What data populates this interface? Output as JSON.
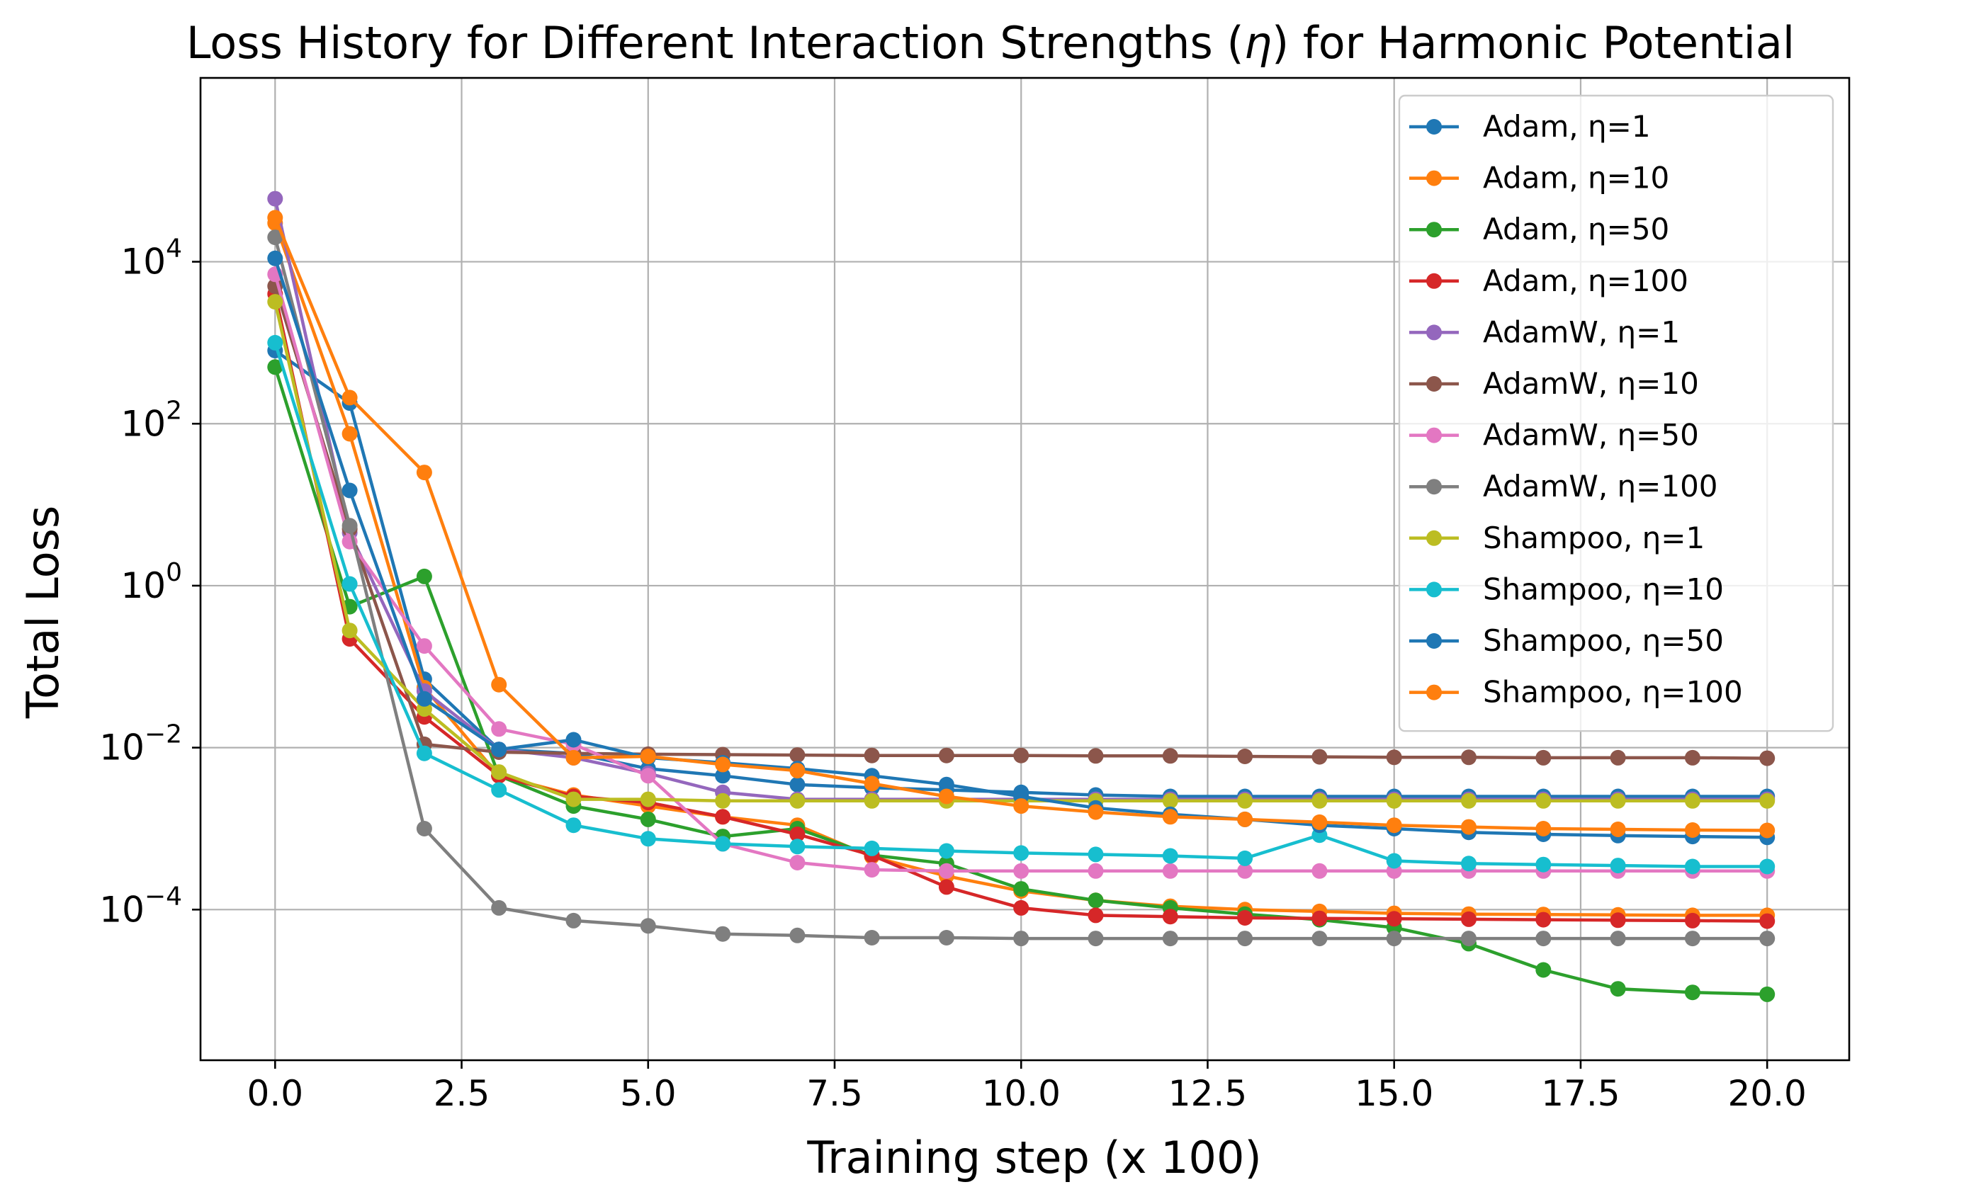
{
  "chart_data": {
    "type": "line",
    "title_prefix": "Loss History for Different Interaction Strengths (",
    "title_symbol": "η",
    "title_suffix": ") for Harmonic Potential",
    "xlabel": "Training step (x 100)",
    "ylabel": "Total Loss",
    "xlim": [
      -1.0,
      21.1
    ],
    "ylim_log10": [
      -5.86,
      6.27
    ],
    "y_scale": "log",
    "grid": true,
    "legend_position": "upper right",
    "x_ticks": [
      0,
      2.5,
      5,
      7.5,
      10,
      12.5,
      15,
      17.5,
      20
    ],
    "x_tick_labels": [
      "0.0",
      "2.5",
      "5.0",
      "7.5",
      "10.0",
      "12.5",
      "15.0",
      "17.5",
      "20.0"
    ],
    "y_ticks_log10": [
      -4,
      -2,
      0,
      2,
      4
    ],
    "y_tick_bases": [
      "10",
      "10",
      "10",
      "10",
      "10"
    ],
    "y_tick_exponents": [
      "−4",
      "−2",
      "0",
      "2",
      "4"
    ],
    "x": [
      0,
      1,
      2,
      3,
      4,
      5,
      6,
      7,
      8,
      9,
      10,
      11,
      12,
      13,
      14,
      15,
      16,
      17,
      18,
      19,
      20
    ],
    "series": [
      {
        "name": "Adam, η=1",
        "color": "#1f77b4",
        "values": [
          800,
          180,
          0.07,
          0.0095,
          0.0085,
          0.0055,
          0.0045,
          0.0035,
          0.0032,
          0.003,
          0.0028,
          0.0026,
          0.0025,
          0.0025,
          0.0025,
          0.0025,
          0.0025,
          0.0025,
          0.0025,
          0.0025,
          0.0025
        ]
      },
      {
        "name": "Adam, η=10",
        "color": "#ff7f0e",
        "values": [
          30000,
          75,
          0.055,
          0.0045,
          0.0026,
          0.0019,
          0.0014,
          0.0011,
          0.00045,
          0.00026,
          0.00017,
          0.00013,
          0.00011,
          0.0001,
          9.5e-05,
          9e-05,
          8.8e-05,
          8.7e-05,
          8.6e-05,
          8.5e-05,
          8.5e-05
        ]
      },
      {
        "name": "Adam, η=50",
        "color": "#2ca02c",
        "values": [
          500,
          0.55,
          1.3,
          0.0045,
          0.0019,
          0.0013,
          0.0008,
          0.001,
          0.00047,
          0.00037,
          0.00018,
          0.00013,
          0.000105,
          8.8e-05,
          7.5e-05,
          6e-05,
          3.8e-05,
          1.8e-05,
          1.05e-05,
          9.5e-06,
          9e-06
        ]
      },
      {
        "name": "Adam, η=100",
        "color": "#d62728",
        "values": [
          4000,
          0.22,
          0.024,
          0.0045,
          0.0025,
          0.0021,
          0.0014,
          0.00085,
          0.00047,
          0.00019,
          0.000105,
          8.5e-05,
          8.2e-05,
          7.9e-05,
          7.8e-05,
          7.7e-05,
          7.6e-05,
          7.5e-05,
          7.4e-05,
          7.3e-05,
          7.2e-05
        ]
      },
      {
        "name": "AdamW, η=1",
        "color": "#9467bd",
        "values": [
          60000,
          4.5,
          0.05,
          0.0095,
          0.0075,
          0.0048,
          0.0028,
          0.0023,
          0.0023,
          0.0023,
          0.0023,
          0.0023,
          0.0023,
          0.0023,
          0.0023,
          0.0023,
          0.0023,
          0.0023,
          0.0023,
          0.0023,
          0.0023
        ]
      },
      {
        "name": "AdamW, η=10",
        "color": "#8c564b",
        "values": [
          5000,
          5.0,
          0.011,
          0.0088,
          0.0085,
          0.0083,
          0.0082,
          0.0081,
          0.008,
          0.008,
          0.008,
          0.0079,
          0.0079,
          0.0078,
          0.0077,
          0.0076,
          0.0076,
          0.0075,
          0.0075,
          0.0075,
          0.0074
        ]
      },
      {
        "name": "AdamW, η=50",
        "color": "#e377c2",
        "values": [
          7000,
          3.5,
          0.18,
          0.017,
          0.011,
          0.0045,
          0.00065,
          0.00038,
          0.00031,
          0.0003,
          0.0003,
          0.0003,
          0.0003,
          0.0003,
          0.0003,
          0.0003,
          0.0003,
          0.0003,
          0.0003,
          0.0003,
          0.0003
        ]
      },
      {
        "name": "AdamW, η=100",
        "color": "#7f7f7f",
        "values": [
          20000,
          5.5,
          0.001,
          0.000105,
          7.3e-05,
          6.3e-05,
          5e-05,
          4.8e-05,
          4.5e-05,
          4.5e-05,
          4.4e-05,
          4.4e-05,
          4.4e-05,
          4.4e-05,
          4.4e-05,
          4.4e-05,
          4.4e-05,
          4.4e-05,
          4.4e-05,
          4.4e-05,
          4.4e-05
        ]
      },
      {
        "name": "Shampoo, η=1",
        "color": "#bcbd22",
        "values": [
          3200,
          0.28,
          0.03,
          0.005,
          0.0023,
          0.0023,
          0.0022,
          0.0022,
          0.0022,
          0.0022,
          0.0022,
          0.0022,
          0.0022,
          0.0022,
          0.0022,
          0.0022,
          0.0022,
          0.0022,
          0.0022,
          0.0022,
          0.0022
        ]
      },
      {
        "name": "Shampoo, η=10",
        "color": "#17becf",
        "values": [
          1000,
          1.05,
          0.0085,
          0.003,
          0.0011,
          0.00075,
          0.00065,
          0.0006,
          0.00057,
          0.00053,
          0.0005,
          0.00048,
          0.00046,
          0.00043,
          0.00083,
          0.0004,
          0.00037,
          0.00036,
          0.00035,
          0.00034,
          0.00034
        ]
      },
      {
        "name": "Shampoo, η=50",
        "color": "#1f77b4",
        "values": [
          11000,
          15,
          0.04,
          0.0095,
          0.0125,
          0.0075,
          0.0065,
          0.0055,
          0.0045,
          0.0035,
          0.0025,
          0.0018,
          0.0015,
          0.0013,
          0.0011,
          0.001,
          0.0009,
          0.00085,
          0.00082,
          0.0008,
          0.00078
        ]
      },
      {
        "name": "Shampoo, η=100",
        "color": "#ff7f0e",
        "values": [
          35000,
          210,
          25,
          0.06,
          0.0075,
          0.0078,
          0.0062,
          0.0052,
          0.0036,
          0.0025,
          0.0019,
          0.0016,
          0.0014,
          0.0013,
          0.0012,
          0.0011,
          0.00105,
          0.001,
          0.00098,
          0.00096,
          0.00095
        ]
      }
    ]
  }
}
